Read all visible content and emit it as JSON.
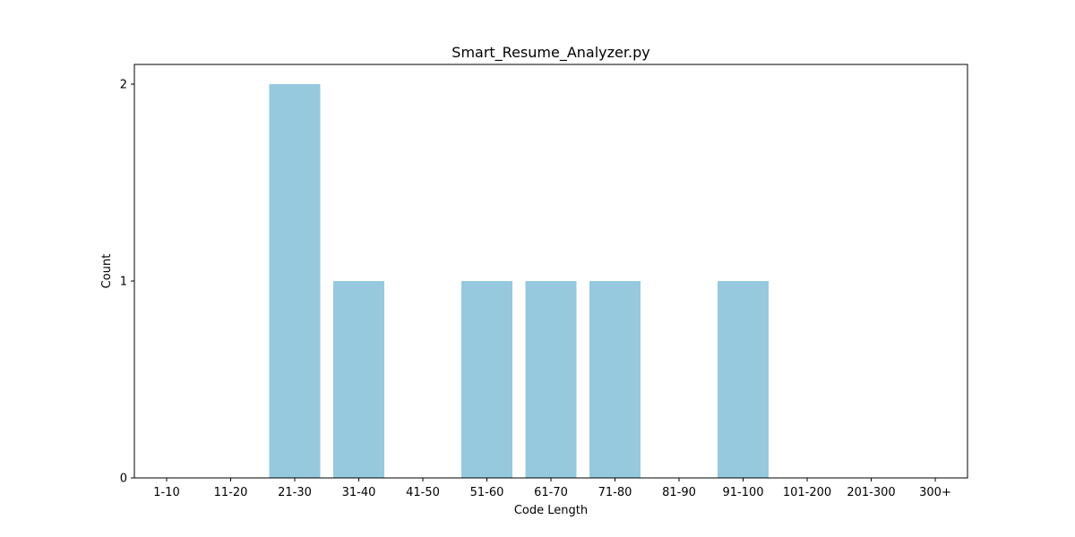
{
  "chart_data": {
    "type": "bar",
    "title": "Smart_Resume_Analyzer.py",
    "xlabel": "Code Length",
    "ylabel": "Count",
    "categories": [
      "1-10",
      "11-20",
      "21-30",
      "31-40",
      "41-50",
      "51-60",
      "61-70",
      "71-80",
      "81-90",
      "91-100",
      "101-200",
      "201-300",
      "300+"
    ],
    "values": [
      0,
      0,
      2,
      1,
      0,
      1,
      1,
      1,
      0,
      1,
      0,
      0,
      0
    ],
    "ylim": [
      0,
      2.1
    ],
    "yticks": [
      0,
      1,
      2
    ],
    "bar_color": "#96c9dd",
    "grid": false,
    "legend": "none"
  }
}
